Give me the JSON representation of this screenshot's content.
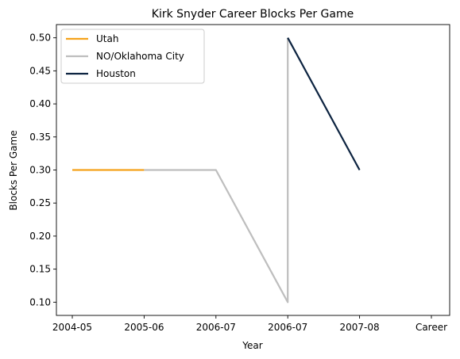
{
  "chart_data": {
    "type": "line",
    "title": "Kirk Snyder Career Blocks Per Game",
    "xlabel": "Year",
    "ylabel": "Blocks Per Game",
    "categories": [
      "2004-05",
      "2005-06",
      "2006-07",
      "2006-07",
      "2007-08",
      "Career"
    ],
    "ylim": [
      0.08,
      0.52
    ],
    "yticks": [
      0.1,
      0.15,
      0.2,
      0.25,
      0.3,
      0.35,
      0.4,
      0.45,
      0.5
    ],
    "grid": false,
    "legend_position": "top-left",
    "series": [
      {
        "name": "Utah",
        "color": "#f5a21b",
        "points": [
          [
            0,
            0.3
          ],
          [
            1,
            0.3
          ]
        ]
      },
      {
        "name": "NO/Oklahoma City",
        "color": "#bebebe",
        "points": [
          [
            1,
            0.3
          ],
          [
            2,
            0.3
          ],
          [
            3,
            0.1
          ],
          [
            3,
            0.5
          ]
        ]
      },
      {
        "name": "Houston",
        "color": "#0c2340",
        "points": [
          [
            3,
            0.5
          ],
          [
            4,
            0.3
          ]
        ]
      }
    ]
  }
}
